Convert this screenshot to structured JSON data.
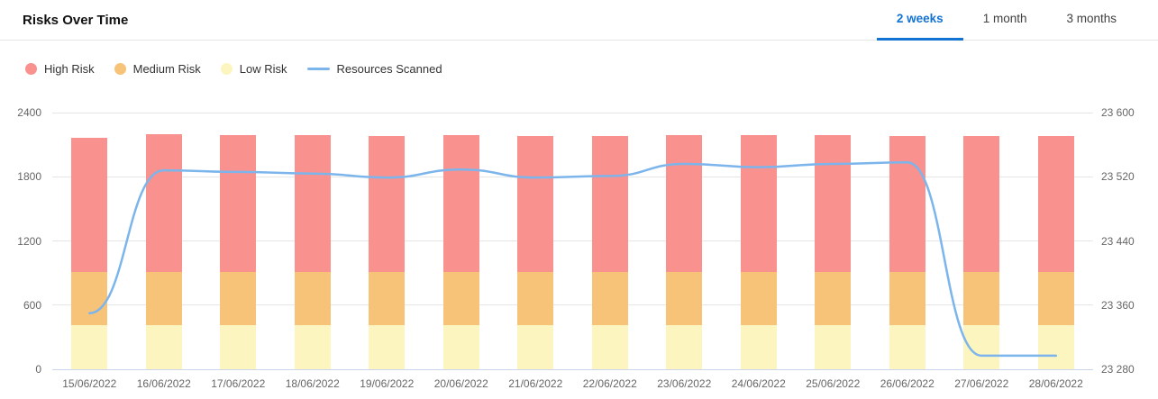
{
  "header": {
    "title": "Risks Over Time",
    "tabs": [
      {
        "label": "2 weeks",
        "active": true
      },
      {
        "label": "1 month",
        "active": false
      },
      {
        "label": "3 months",
        "active": false
      }
    ],
    "active_tab_color": "#1273d3"
  },
  "legend": [
    {
      "label": "High Risk",
      "marker": "circle",
      "color": "#f9928e"
    },
    {
      "label": "Medium Risk",
      "marker": "circle",
      "color": "#f7c379"
    },
    {
      "label": "Low Risk",
      "marker": "circle",
      "color": "#fdf5c0"
    },
    {
      "label": "Resources Scanned",
      "marker": "line",
      "color": "#7cb5ec"
    }
  ],
  "chart_data": {
    "type": "combo (stacked bar + line)",
    "categories": [
      "15/06/2022",
      "16/06/2022",
      "17/06/2022",
      "18/06/2022",
      "19/06/2022",
      "20/06/2022",
      "21/06/2022",
      "22/06/2022",
      "23/06/2022",
      "24/06/2022",
      "25/06/2022",
      "26/06/2022",
      "27/06/2022",
      "28/06/2022"
    ],
    "series": [
      {
        "name": "Low Risk",
        "type": "bar",
        "stack": "risks",
        "axis": "left",
        "color": "#fdf5c0",
        "values": [
          415,
          415,
          415,
          415,
          415,
          415,
          415,
          415,
          415,
          415,
          415,
          415,
          415,
          415
        ]
      },
      {
        "name": "Medium Risk",
        "type": "bar",
        "stack": "risks",
        "axis": "left",
        "color": "#f7c379",
        "values": [
          495,
          495,
          495,
          495,
          495,
          495,
          495,
          495,
          495,
          495,
          495,
          495,
          495,
          495
        ]
      },
      {
        "name": "High Risk",
        "type": "bar",
        "stack": "risks",
        "axis": "left",
        "color": "#f9928e",
        "values": [
          1255,
          1285,
          1280,
          1280,
          1270,
          1280,
          1275,
          1270,
          1280,
          1280,
          1280,
          1275,
          1270,
          1270
        ]
      },
      {
        "name": "Resources Scanned",
        "type": "line",
        "axis": "right",
        "color": "#7cb5ec",
        "values": [
          23350,
          23528,
          23526,
          23524,
          23519,
          23529,
          23519,
          23521,
          23536,
          23532,
          23536,
          23538,
          23297,
          23297
        ]
      }
    ],
    "left_axis": {
      "min": 0,
      "max": 2400,
      "tick_labels": [
        "0",
        "600",
        "1200",
        "1800",
        "2400"
      ]
    },
    "right_axis": {
      "min": 23280,
      "max": 23600,
      "tick_labels": [
        "23 280",
        "23 360",
        "23 440",
        "23 520",
        "23 600"
      ]
    },
    "grid": true,
    "gridline_color": "#e6e6e6",
    "baseline_color": "#ccd6eb",
    "legend_position": "top-left"
  }
}
